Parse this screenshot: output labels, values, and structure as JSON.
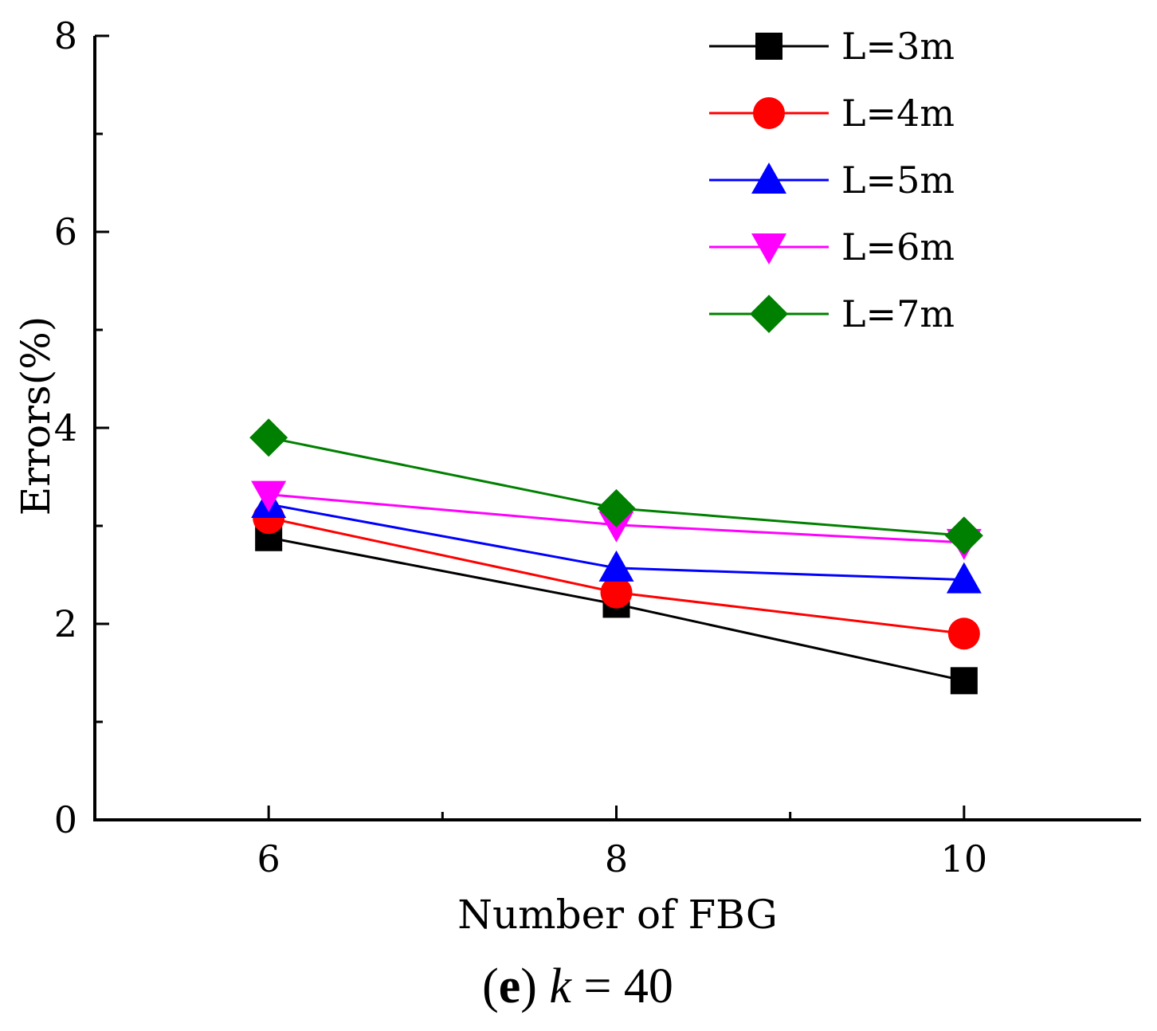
{
  "chart_data": {
    "type": "line",
    "title": "",
    "caption": {
      "panel": "(e)",
      "panel_letter": "e",
      "variable": "k",
      "value_text": " = 40"
    },
    "xlabel": "Number of FBG",
    "ylabel": "Errors(%)",
    "x": [
      6,
      8,
      10
    ],
    "xlim": [
      5,
      11
    ],
    "ylim": [
      0,
      8
    ],
    "x_ticks": [
      "6",
      "8",
      "10"
    ],
    "y_ticks": [
      "0",
      "2",
      "4",
      "6",
      "8"
    ],
    "legend_position": "top-right",
    "series": [
      {
        "name": "L=3m",
        "color": "#000000",
        "marker": "square",
        "values": [
          2.88,
          2.2,
          1.42
        ]
      },
      {
        "name": "L=4m",
        "color": "#ff0000",
        "marker": "circle",
        "values": [
          3.08,
          2.32,
          1.9
        ]
      },
      {
        "name": "L=5m",
        "color": "#0000ff",
        "marker": "triangle-up",
        "values": [
          3.22,
          2.57,
          2.45
        ]
      },
      {
        "name": "L=6m",
        "color": "#ff00ff",
        "marker": "triangle-down",
        "values": [
          3.32,
          3.01,
          2.83
        ]
      },
      {
        "name": "L=7m",
        "color": "#008000",
        "marker": "diamond",
        "values": [
          3.9,
          3.18,
          2.9
        ]
      }
    ]
  }
}
